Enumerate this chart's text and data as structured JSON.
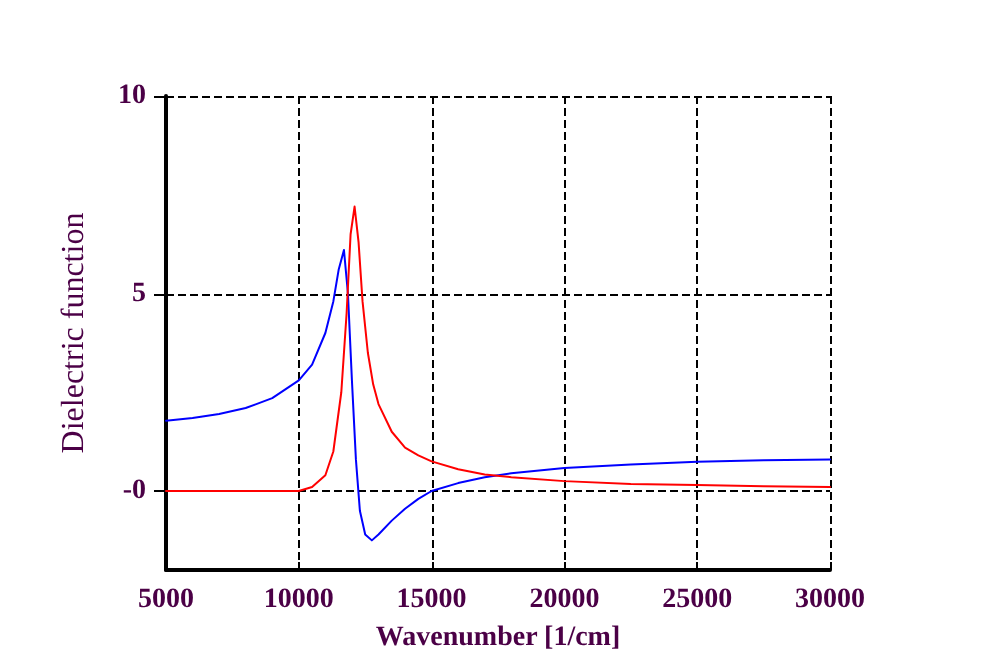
{
  "chart_data": {
    "type": "line",
    "xlabel": "Wavenumber [1/cm]",
    "ylabel": "Dielectric function",
    "xlim": [
      5000,
      30000
    ],
    "xticks": [
      5000,
      10000,
      15000,
      20000,
      25000,
      30000
    ],
    "ylim": [
      -2,
      10
    ],
    "yticks": [
      {
        "value": 0,
        "label": "-0"
      },
      5,
      10
    ],
    "grid": true,
    "marker": "none",
    "line_style": "solid",
    "series": [
      {
        "color": "#0000ff",
        "x": [
          5000,
          6000,
          7000,
          8000,
          9000,
          10000,
          10500,
          11000,
          11300,
          11500,
          11700,
          11850,
          12000,
          12150,
          12300,
          12500,
          12750,
          13000,
          13500,
          14000,
          14500,
          15000,
          16000,
          17000,
          18000,
          20000,
          22500,
          25000,
          27500,
          30000
        ],
        "values": [
          1.78,
          1.85,
          1.95,
          2.1,
          2.35,
          2.8,
          3.2,
          4.0,
          4.8,
          5.6,
          6.1,
          5.0,
          2.8,
          0.8,
          -0.5,
          -1.1,
          -1.25,
          -1.1,
          -0.75,
          -0.45,
          -0.2,
          0,
          0.2,
          0.35,
          0.45,
          0.58,
          0.67,
          0.74,
          0.78,
          0.8
        ]
      },
      {
        "color": "#ff0000",
        "x": [
          5000,
          10000,
          10500,
          11000,
          11300,
          11600,
          11800,
          11950,
          12100,
          12250,
          12400,
          12600,
          12800,
          13000,
          13500,
          14000,
          14500,
          15000,
          16000,
          17000,
          18000,
          20000,
          22500,
          25000,
          27500,
          30000
        ],
        "values": [
          0,
          0,
          0.1,
          0.4,
          1.0,
          2.5,
          4.5,
          6.5,
          7.2,
          6.3,
          4.8,
          3.5,
          2.7,
          2.2,
          1.5,
          1.1,
          0.9,
          0.75,
          0.55,
          0.42,
          0.35,
          0.25,
          0.18,
          0.15,
          0.12,
          0.1
        ]
      }
    ]
  }
}
